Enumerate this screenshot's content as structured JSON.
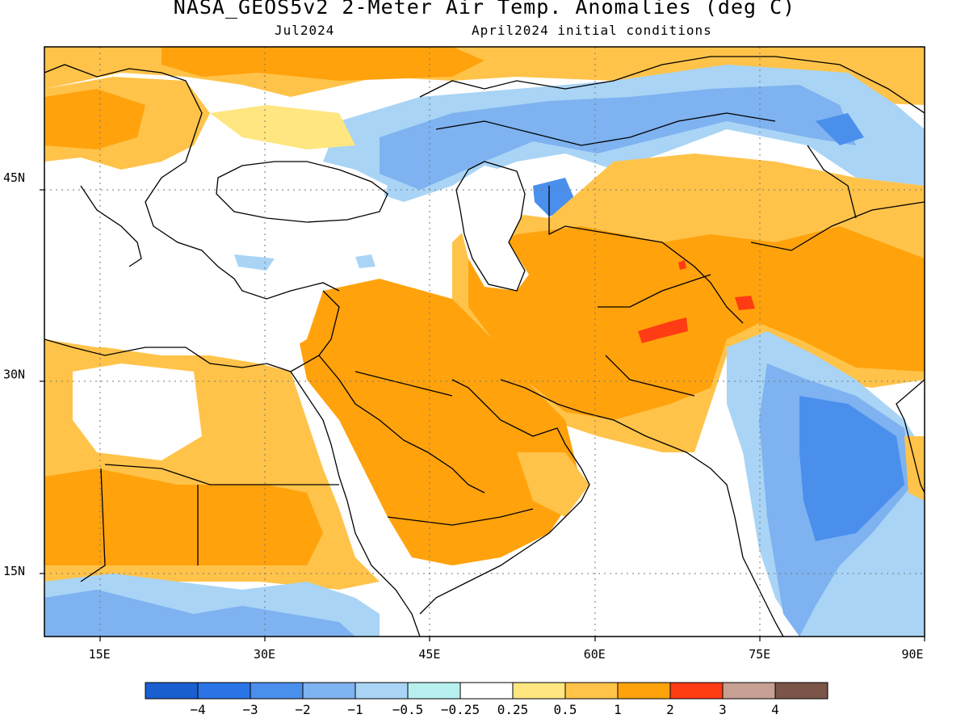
{
  "header": {
    "title": "NASA_GEOS5v2 2-Meter Air Temp. Anomalies (deg C)",
    "valid_month": "Jul2024",
    "init": "April2024 initial conditions"
  },
  "map": {
    "region": {
      "lon_range": [
        10,
        90
      ],
      "lat_range": [
        10,
        55
      ]
    },
    "lon_ticks": [
      {
        "value": 15,
        "label": "15E"
      },
      {
        "value": 30,
        "label": "30E"
      },
      {
        "value": 45,
        "label": "45E"
      },
      {
        "value": 60,
        "label": "60E"
      },
      {
        "value": 75,
        "label": "75E"
      },
      {
        "value": 90,
        "label": "90E"
      }
    ],
    "lat_ticks": [
      {
        "value": 45,
        "label": "45N"
      },
      {
        "value": 30,
        "label": "30N"
      },
      {
        "value": 15,
        "label": "15N"
      }
    ],
    "gridlines": "dotted"
  },
  "colorbar": {
    "colors": [
      "#1a5fcf",
      "#2a74e6",
      "#4a8fec",
      "#7eb2f0",
      "#a9d4f5",
      "#b8f0f0",
      "#ffffff",
      "#ffe680",
      "#ffc34a",
      "#ffa20c",
      "#ff3c14",
      "#c6a093",
      "#7a5548"
    ],
    "labels": [
      "−4",
      "−3",
      "−2",
      "−1",
      "−0.5",
      "−0.25",
      "0.25",
      "0.5",
      "1",
      "2",
      "3",
      "4"
    ]
  }
}
